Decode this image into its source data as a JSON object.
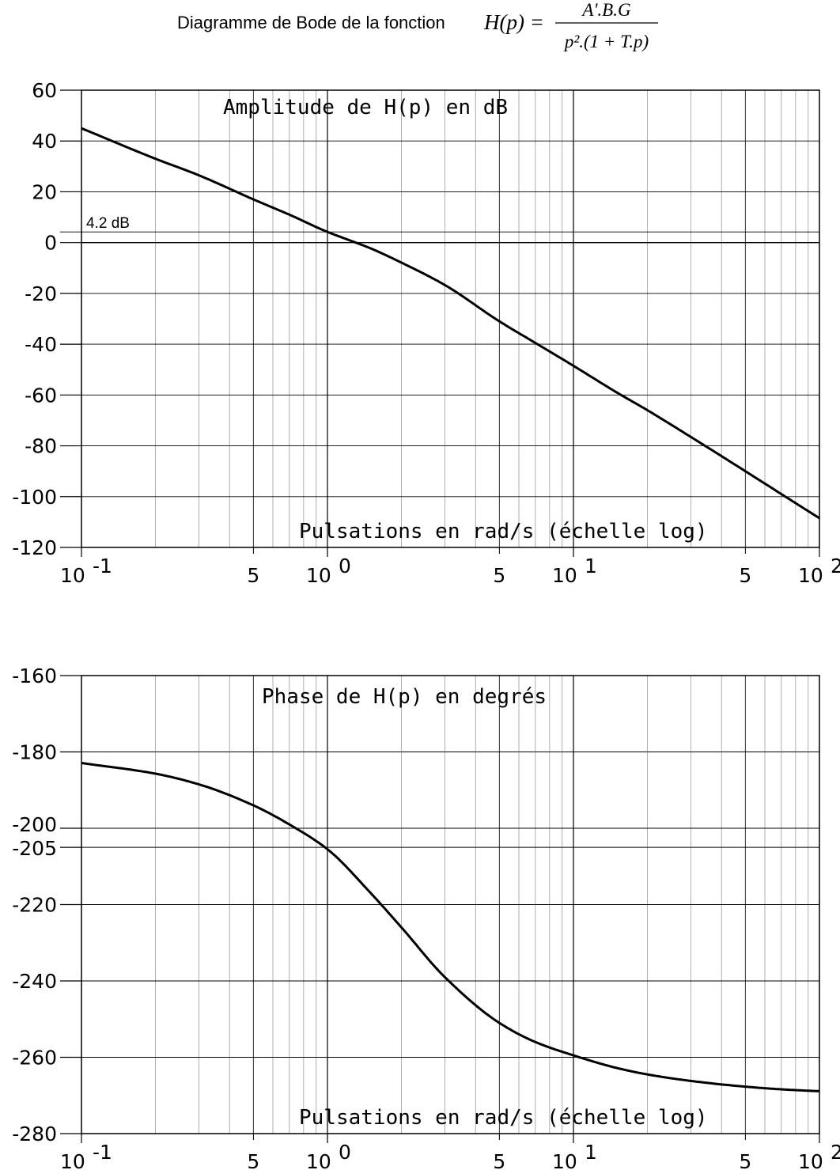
{
  "figure_title": {
    "text": "Diagramme de Bode de la fonction",
    "formula_lhs": "H(p) =",
    "formula_numerator": "A'.B.G",
    "formula_denominator": "p².(1 + T.p)"
  },
  "chart_data": [
    {
      "type": "line",
      "title": "Amplitude de H(p) en dB",
      "xlabel": "Pulsations en rad/s (échelle log)",
      "ylabel": "",
      "x_scale": "log",
      "xlim": [
        0.1,
        100
      ],
      "ylim": [
        -120,
        60
      ],
      "y_ticks": [
        "60",
        "40",
        "20",
        "0",
        "-20",
        "-40",
        "-60",
        "-80",
        "-100",
        "-120"
      ],
      "x_ticks": [
        {
          "base": "10",
          "exp": "-1"
        },
        {
          "minor": "5"
        },
        {
          "base": "10",
          "exp": "0"
        },
        {
          "minor": "5"
        },
        {
          "base": "10",
          "exp": "1"
        },
        {
          "minor": "5"
        },
        {
          "base": "10",
          "exp": "2"
        }
      ],
      "annotation": "4.2 dB",
      "reference_line_y": 4.2,
      "grid": true,
      "series": [
        {
          "x": [
            0.1,
            0.2,
            0.3,
            0.5,
            0.7,
            1.0,
            1.2,
            1.5,
            2,
            3,
            5,
            7,
            10,
            15,
            20,
            30,
            50,
            70,
            100
          ],
          "values": [
            45,
            33,
            26.5,
            17,
            11,
            4.2,
            1.3,
            -2.3,
            -7.9,
            -16.7,
            -31,
            -39.5,
            -48.5,
            -59,
            -66,
            -76.5,
            -90,
            -99,
            -108.5
          ]
        }
      ]
    },
    {
      "type": "line",
      "title": "Phase de H(p) en degrés",
      "xlabel": "Pulsations en rad/s (échelle log)",
      "ylabel": "",
      "x_scale": "log",
      "xlim": [
        0.1,
        100
      ],
      "ylim": [
        -280,
        -160
      ],
      "y_ticks": [
        "-160",
        "-180",
        "-200",
        "-205",
        "-220",
        "-240",
        "-260",
        "-280"
      ],
      "x_ticks": [
        {
          "base": "10",
          "exp": "-1"
        },
        {
          "minor": "5"
        },
        {
          "base": "10",
          "exp": "0"
        },
        {
          "minor": "5"
        },
        {
          "base": "10",
          "exp": "1"
        },
        {
          "minor": "5"
        },
        {
          "base": "10",
          "exp": "2"
        }
      ],
      "grid": true,
      "series": [
        {
          "x": [
            0.1,
            0.2,
            0.3,
            0.5,
            0.7,
            1.0,
            1.5,
            2,
            3,
            5,
            7,
            10,
            15,
            20,
            30,
            50,
            70,
            100
          ],
          "values": [
            -182.9,
            -185.7,
            -188.5,
            -194,
            -199,
            -205.5,
            -217,
            -226,
            -239,
            -251,
            -256,
            -259.5,
            -262.8,
            -264.5,
            -266.2,
            -267.7,
            -268.4,
            -268.9
          ]
        }
      ]
    }
  ]
}
